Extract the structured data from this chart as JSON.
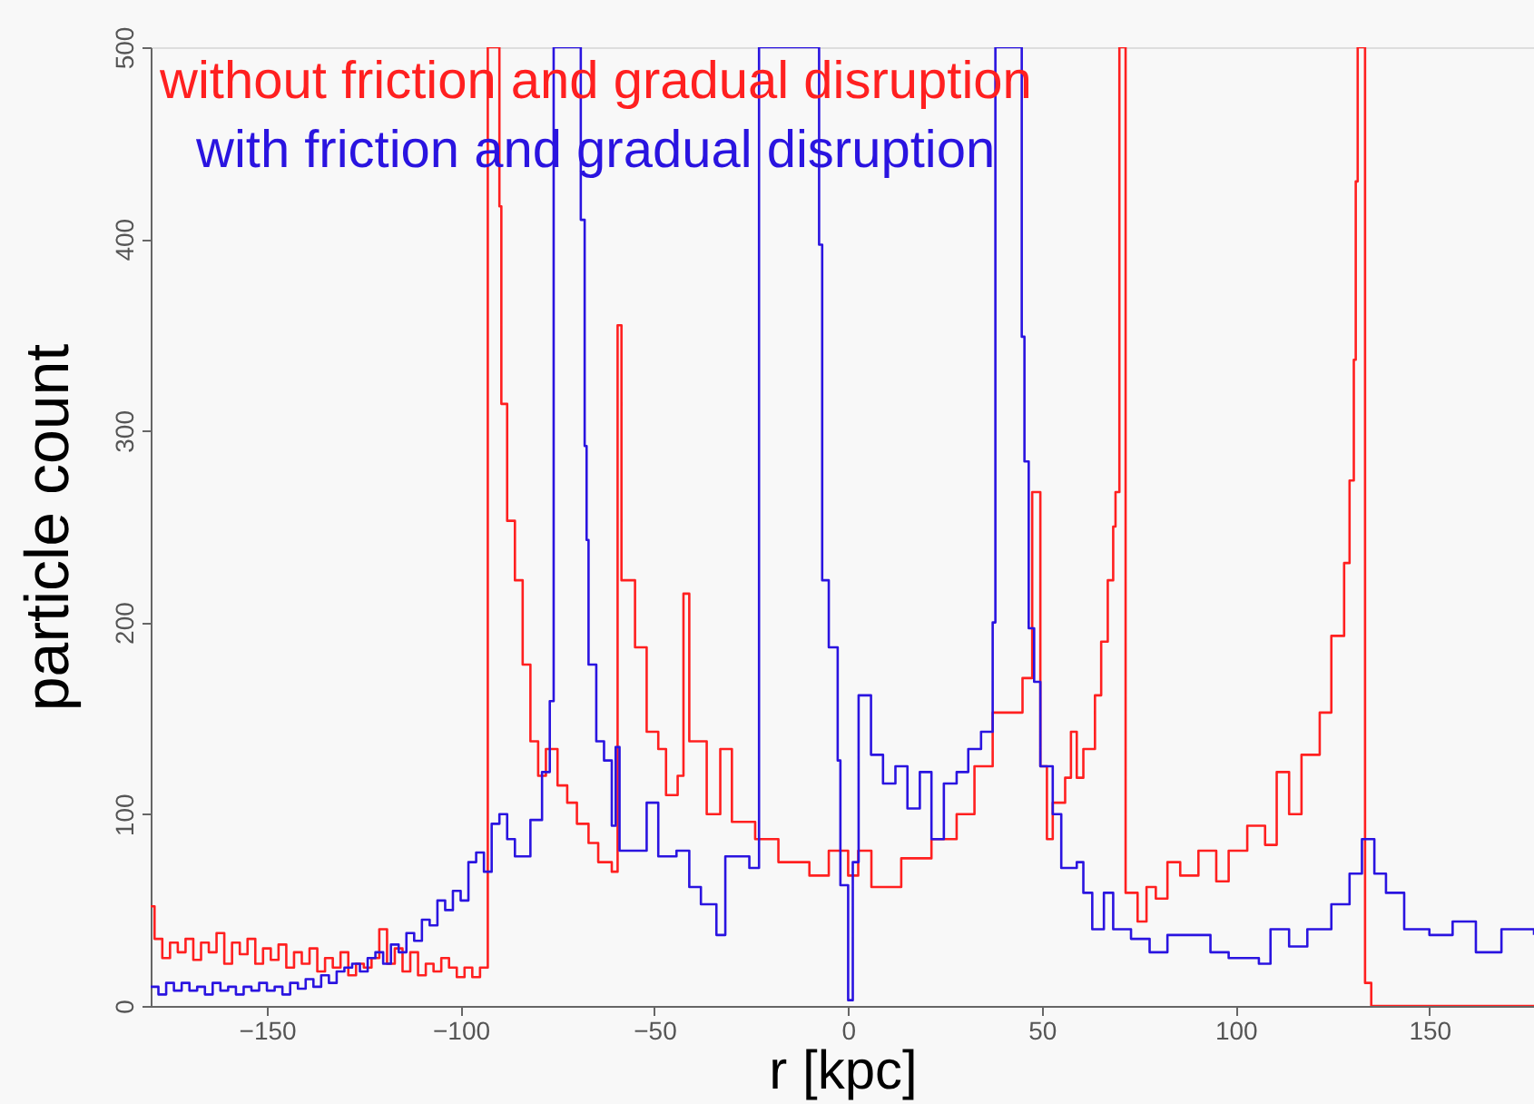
{
  "chart_data": {
    "type": "step",
    "xlabel": "r [kpc]",
    "ylabel": "particle count",
    "xlim": [
      -180,
      177
    ],
    "ylim": [
      0,
      500
    ],
    "xticks": [
      -150,
      -100,
      -50,
      0,
      50,
      100,
      150
    ],
    "yticks": [
      0,
      100,
      200,
      300,
      400,
      500
    ],
    "grid": false,
    "legend": "top left",
    "series": [
      {
        "name": "without friction and gradual disruption",
        "color": "#ff2020",
        "x": [
          -180,
          -179,
          -177,
          -175,
          -173,
          -171,
          -169,
          -167,
          -165,
          -163,
          -161,
          -159,
          -157,
          -155,
          -153,
          -151,
          -149,
          -147,
          -145,
          -143,
          -141,
          -139,
          -137,
          -135,
          -133,
          -131,
          -129,
          -127,
          -125,
          -123,
          -121,
          -119,
          -117,
          -115,
          -113,
          -111,
          -109,
          -107,
          -105,
          -103,
          -101,
          -99,
          -97,
          -95,
          -93,
          -90,
          -89.5,
          -88,
          -86,
          -84,
          -82,
          -80,
          -78,
          -75,
          -72.5,
          -70,
          -67,
          -64.5,
          -61,
          -59.5,
          -58.5,
          -55,
          -52,
          -49,
          -47,
          -44,
          -42.5,
          -41,
          -36.5,
          -33,
          -30,
          -24,
          -18,
          -10,
          -5,
          0,
          2.6,
          6,
          13.7,
          21.5,
          28,
          32.6,
          37.3,
          45,
          47.5,
          49.6,
          51.3,
          52.8,
          56,
          57.5,
          59,
          60.7,
          63.7,
          65.3,
          67,
          68.4,
          69,
          70,
          71.6,
          74.7,
          77,
          79.4,
          82.4,
          85.7,
          90.4,
          95,
          98.2,
          103,
          107.6,
          110.6,
          113.8,
          117,
          121.7,
          124.7,
          128,
          129.4,
          130.5,
          131,
          131.5,
          133.4,
          135,
          177
        ],
        "values": [
          52,
          35,
          25,
          33,
          28,
          35,
          24,
          33,
          28,
          38,
          22,
          33,
          27,
          35,
          22,
          30,
          24,
          32,
          20,
          28,
          22,
          30,
          18,
          25,
          20,
          28,
          16,
          22,
          20,
          25,
          40,
          22,
          30,
          18,
          28,
          16,
          22,
          18,
          25,
          20,
          15,
          20,
          15,
          20,
          500,
          417,
          314,
          253,
          222,
          178,
          138,
          120,
          134,
          115,
          106,
          95,
          85,
          75,
          70,
          355,
          222,
          187,
          143,
          134,
          110,
          120,
          215,
          138,
          100,
          134,
          96,
          87,
          75,
          68,
          81,
          68,
          81,
          62,
          77,
          87,
          100,
          125,
          153,
          171,
          268,
          125,
          87,
          106,
          119,
          143,
          119,
          134,
          162,
          190,
          222,
          250,
          268,
          500,
          59,
          44,
          62,
          56,
          75,
          68,
          81,
          65,
          81,
          94,
          84,
          122,
          100,
          131,
          153,
          193,
          231,
          274,
          337,
          430,
          500,
          12,
          0,
          0
        ]
      },
      {
        "name": "with friction and gradual disruption",
        "color": "#2a14e0",
        "x": [
          -180,
          -178,
          -176,
          -174,
          -172,
          -170,
          -168,
          -166,
          -164,
          -162,
          -160,
          -158,
          -156,
          -154,
          -152,
          -150,
          -148,
          -146,
          -144,
          -142,
          -140,
          -138,
          -136,
          -134,
          -132,
          -130,
          -128,
          -126,
          -124,
          -122,
          -120,
          -118,
          -116,
          -114,
          -112,
          -110,
          -108,
          -106,
          -104,
          -102,
          -100,
          -98,
          -96,
          -94,
          -92,
          -90,
          -88,
          -86,
          -82,
          -79,
          -77,
          -76,
          -69,
          -68,
          -67.5,
          -67,
          -65,
          -63,
          -61,
          -60,
          -59,
          -56.7,
          -52,
          -49,
          -44.3,
          -41,
          -38,
          -34,
          -31.7,
          -25.5,
          -23,
          -7.5,
          -6.7,
          -5,
          -2.7,
          -2,
          0,
          1.2,
          2.7,
          5.9,
          9,
          12.2,
          15.3,
          18.5,
          21.5,
          24.7,
          28,
          31,
          34.3,
          37.3,
          38,
          44.8,
          45.5,
          46.6,
          48,
          49.6,
          52.8,
          55,
          59,
          60.7,
          63,
          66,
          68.4,
          73,
          77.8,
          82.4,
          90.4,
          93.5,
          98.2,
          106,
          109,
          113.8,
          118.5,
          124.7,
          129.4,
          132.6,
          135.8,
          138.8,
          143.5,
          150,
          156,
          162,
          168.6,
          177
        ],
        "values": [
          10,
          6,
          12,
          8,
          12,
          8,
          10,
          6,
          12,
          8,
          10,
          6,
          10,
          8,
          12,
          8,
          10,
          6,
          12,
          9,
          14,
          10,
          16,
          12,
          18,
          20,
          22,
          18,
          25,
          28,
          22,
          32,
          28,
          38,
          34,
          45,
          42,
          55,
          50,
          60,
          55,
          75,
          80,
          70,
          95,
          100,
          87,
          78,
          97,
          122,
          159,
          500,
          410,
          292,
          243,
          178,
          138,
          128,
          94,
          135,
          81,
          81,
          106,
          78,
          81,
          62,
          53,
          37,
          78,
          72,
          500,
          397,
          222,
          187,
          128,
          63,
          3,
          75,
          162,
          131,
          116,
          125,
          103,
          122,
          87,
          116,
          122,
          134,
          143,
          200,
          500,
          349,
          284,
          197,
          169,
          125,
          100,
          72,
          75,
          59,
          40,
          59,
          40,
          35,
          28,
          37,
          37,
          28,
          25,
          22,
          40,
          31,
          40,
          53,
          69,
          87,
          69,
          59,
          40,
          37,
          44,
          28,
          40,
          37
        ]
      }
    ]
  }
}
